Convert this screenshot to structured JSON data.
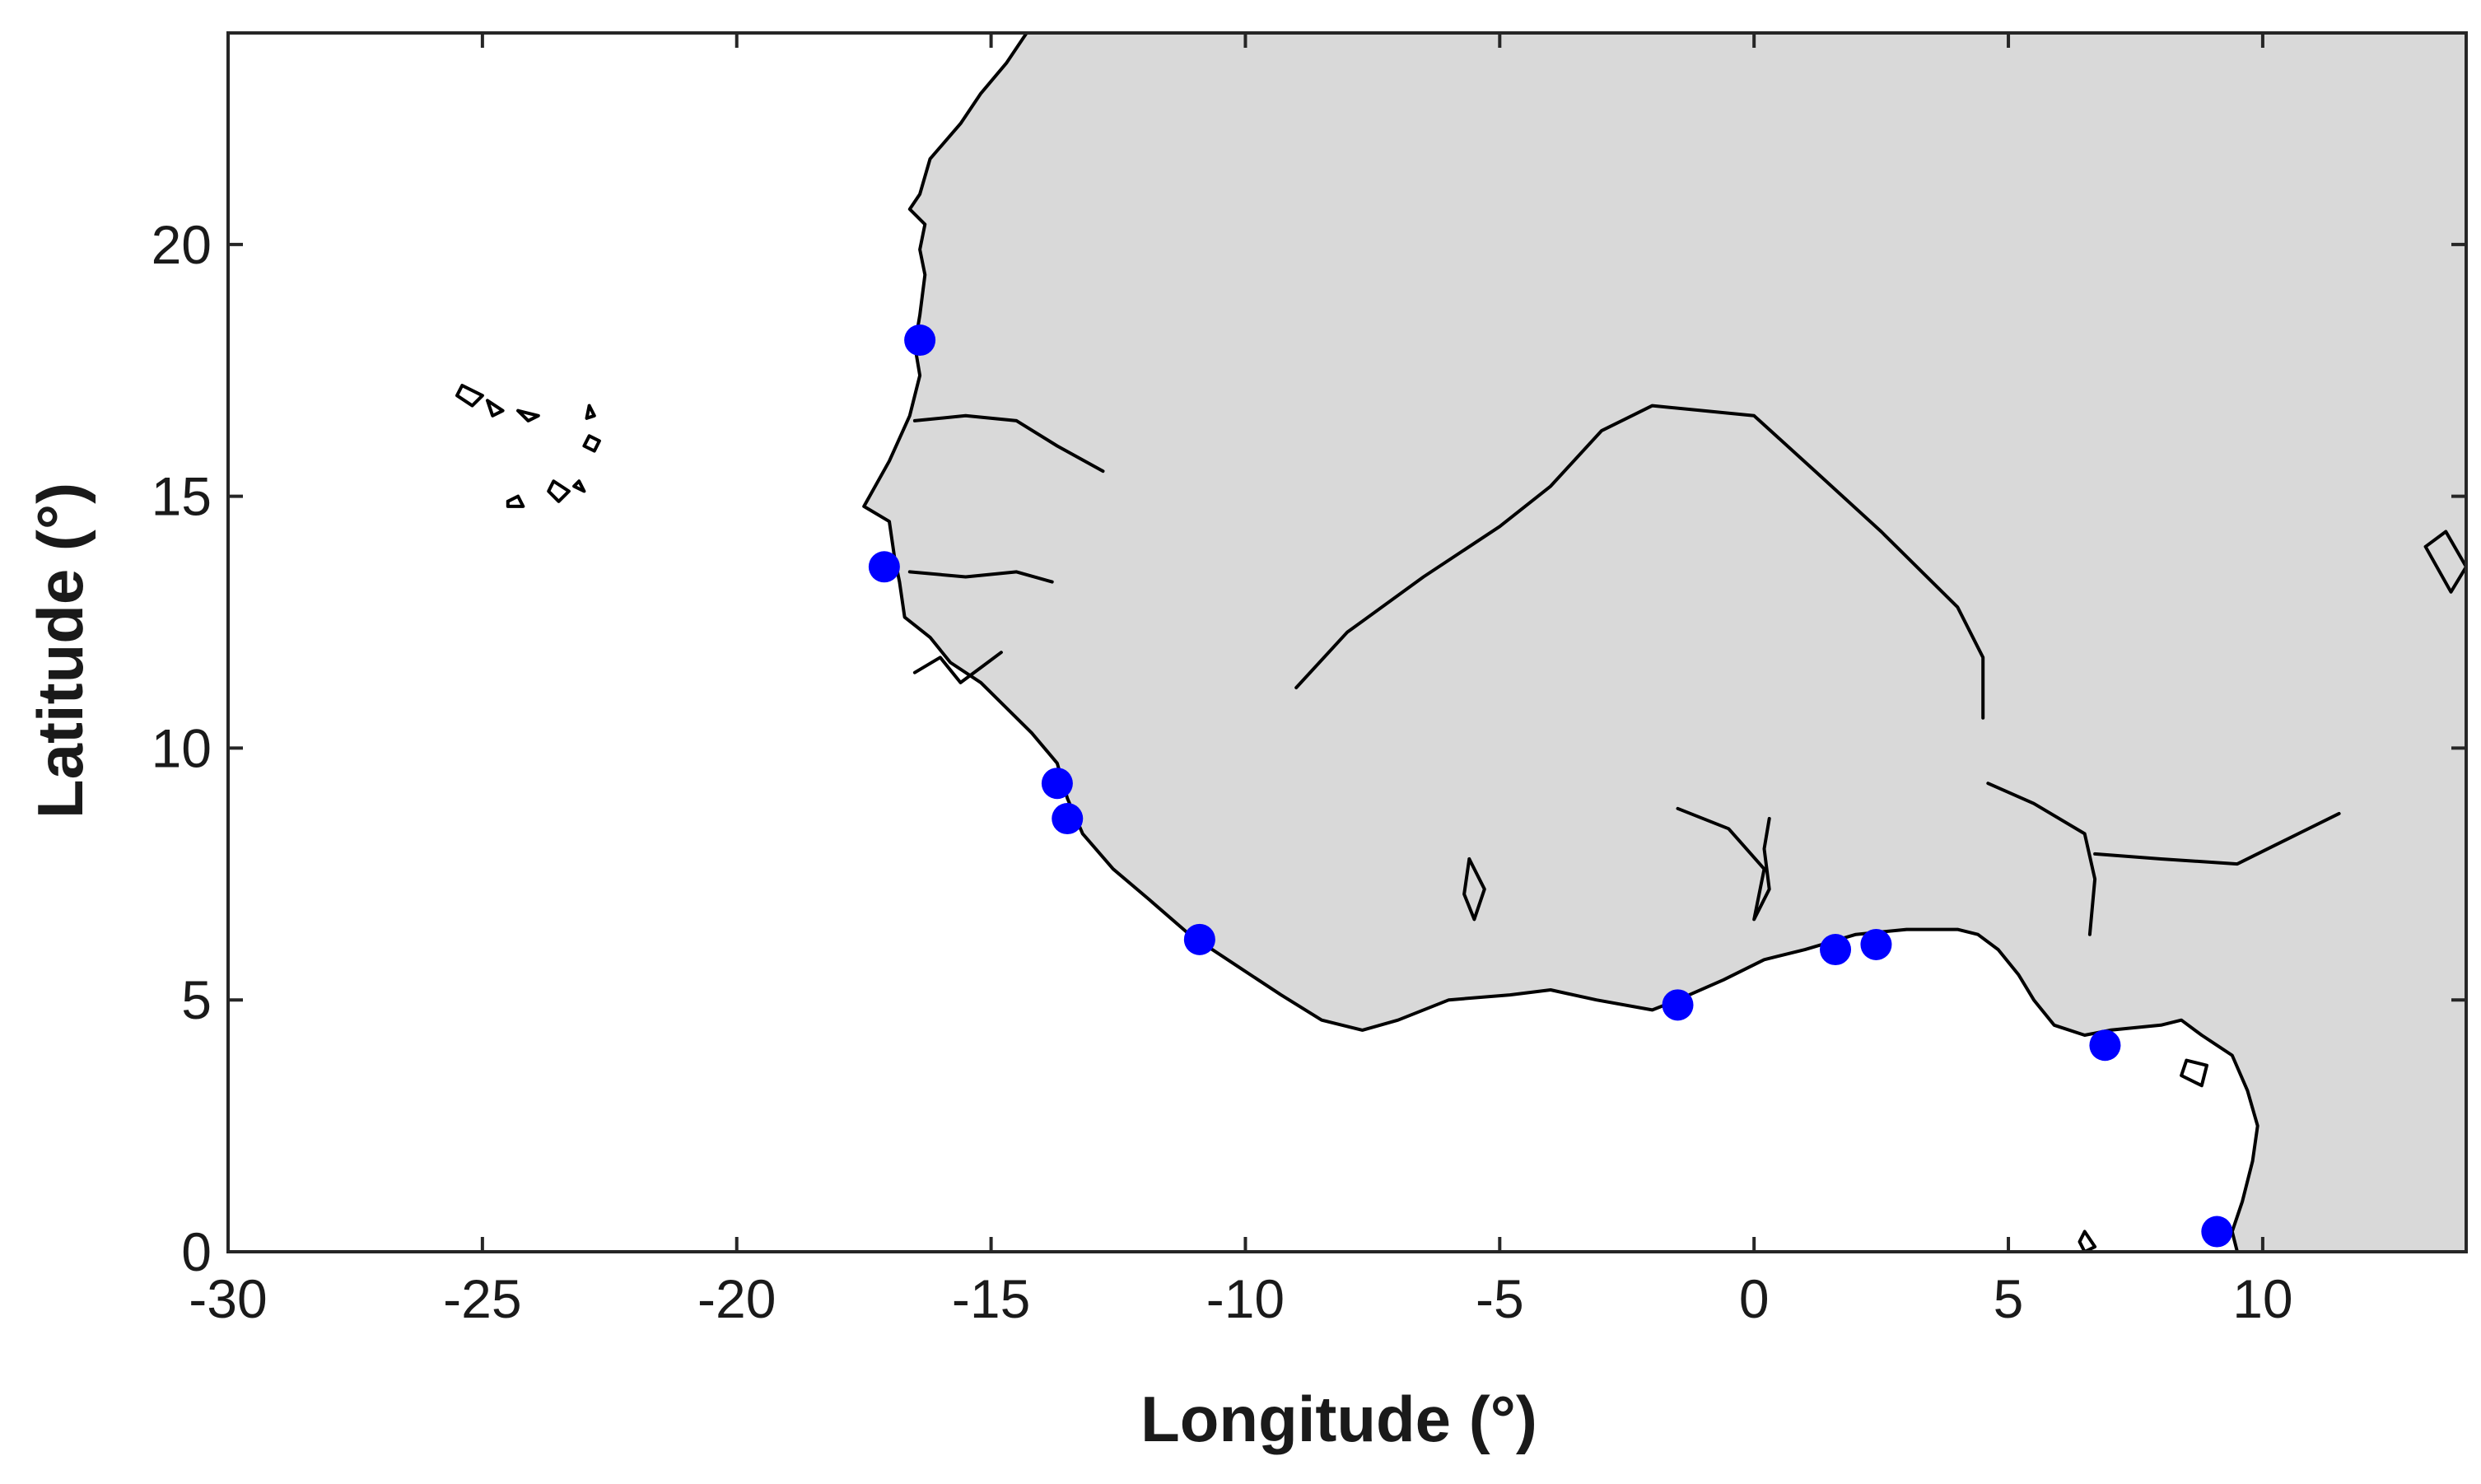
{
  "chart_data": {
    "type": "scatter",
    "title": "",
    "xlabel": "Longitude (°)",
    "ylabel": "Latitude (°)",
    "xlim": [
      -30,
      14
    ],
    "ylim": [
      0,
      24.2
    ],
    "xticks": [
      {
        "value": -30,
        "label": "-30"
      },
      {
        "value": -25,
        "label": "-25"
      },
      {
        "value": -20,
        "label": "-20"
      },
      {
        "value": -15,
        "label": "-15"
      },
      {
        "value": -10,
        "label": "-10"
      },
      {
        "value": -5,
        "label": "-5"
      },
      {
        "value": 0,
        "label": "0"
      },
      {
        "value": 5,
        "label": "5"
      },
      {
        "value": 10,
        "label": "10"
      }
    ],
    "yticks": [
      {
        "value": 0,
        "label": "0"
      },
      {
        "value": 5,
        "label": "5"
      },
      {
        "value": 10,
        "label": "10"
      },
      {
        "value": 15,
        "label": "15"
      },
      {
        "value": 20,
        "label": "20"
      }
    ],
    "grid": false,
    "land_color": "#d9d9d9",
    "marker_color": "#0000ff",
    "points": [
      {
        "lon": -16.4,
        "lat": 18.1
      },
      {
        "lon": -17.1,
        "lat": 13.6
      },
      {
        "lon": -13.7,
        "lat": 9.3
      },
      {
        "lon": -13.5,
        "lat": 8.6
      },
      {
        "lon": -10.9,
        "lat": 6.2
      },
      {
        "lon": -1.5,
        "lat": 4.9
      },
      {
        "lon": 1.6,
        "lat": 6.0
      },
      {
        "lon": 2.4,
        "lat": 6.1
      },
      {
        "lon": 6.9,
        "lat": 4.1
      },
      {
        "lon": 9.1,
        "lat": 0.4
      }
    ],
    "land_polygon": [
      [
        -14.3,
        24.2
      ],
      [
        -14.7,
        23.6
      ],
      [
        -15.2,
        23.0
      ],
      [
        -15.6,
        22.4
      ],
      [
        -16.2,
        21.7
      ],
      [
        -16.4,
        21.0
      ],
      [
        -16.6,
        20.7
      ],
      [
        -16.3,
        20.4
      ],
      [
        -16.4,
        19.9
      ],
      [
        -16.3,
        19.4
      ],
      [
        -16.4,
        18.6
      ],
      [
        -16.5,
        18.0
      ],
      [
        -16.4,
        17.4
      ],
      [
        -16.6,
        16.6
      ],
      [
        -17.0,
        15.7
      ],
      [
        -17.5,
        14.8
      ],
      [
        -17.0,
        14.5
      ],
      [
        -16.9,
        13.8
      ],
      [
        -16.8,
        13.3
      ],
      [
        -16.7,
        12.6
      ],
      [
        -16.2,
        12.2
      ],
      [
        -15.8,
        11.7
      ],
      [
        -15.2,
        11.3
      ],
      [
        -14.7,
        10.8
      ],
      [
        -14.2,
        10.3
      ],
      [
        -13.7,
        9.7
      ],
      [
        -13.5,
        9.0
      ],
      [
        -13.2,
        8.3
      ],
      [
        -12.6,
        7.6
      ],
      [
        -11.9,
        7.0
      ],
      [
        -11.1,
        6.3
      ],
      [
        -10.2,
        5.7
      ],
      [
        -9.3,
        5.1
      ],
      [
        -8.5,
        4.6
      ],
      [
        -7.7,
        4.4
      ],
      [
        -7.0,
        4.6
      ],
      [
        -6.0,
        5.0
      ],
      [
        -4.8,
        5.1
      ],
      [
        -4.0,
        5.2
      ],
      [
        -3.1,
        5.0
      ],
      [
        -2.0,
        4.8
      ],
      [
        -1.5,
        5.0
      ],
      [
        -0.6,
        5.4
      ],
      [
        0.2,
        5.8
      ],
      [
        1.0,
        6.0
      ],
      [
        2.0,
        6.3
      ],
      [
        3.0,
        6.4
      ],
      [
        4.0,
        6.4
      ],
      [
        4.4,
        6.3
      ],
      [
        4.8,
        6.0
      ],
      [
        5.2,
        5.5
      ],
      [
        5.5,
        5.0
      ],
      [
        5.9,
        4.5
      ],
      [
        6.5,
        4.3
      ],
      [
        7.0,
        4.4
      ],
      [
        8.0,
        4.5
      ],
      [
        8.4,
        4.6
      ],
      [
        8.8,
        4.3
      ],
      [
        9.4,
        3.9
      ],
      [
        9.7,
        3.2
      ],
      [
        9.9,
        2.5
      ],
      [
        9.8,
        1.8
      ],
      [
        9.6,
        1.0
      ],
      [
        9.4,
        0.4
      ],
      [
        9.5,
        0.0
      ],
      [
        14.0,
        0.0
      ],
      [
        14.0,
        24.2
      ]
    ],
    "coast_line": [
      [
        -14.3,
        24.2
      ],
      [
        -14.7,
        23.6
      ],
      [
        -15.2,
        23.0
      ],
      [
        -15.6,
        22.4
      ],
      [
        -16.2,
        21.7
      ],
      [
        -16.4,
        21.0
      ],
      [
        -16.6,
        20.7
      ],
      [
        -16.3,
        20.4
      ],
      [
        -16.4,
        19.9
      ],
      [
        -16.3,
        19.4
      ],
      [
        -16.4,
        18.6
      ],
      [
        -16.5,
        18.0
      ],
      [
        -16.4,
        17.4
      ],
      [
        -16.6,
        16.6
      ],
      [
        -17.0,
        15.7
      ],
      [
        -17.5,
        14.8
      ],
      [
        -17.0,
        14.5
      ],
      [
        -16.9,
        13.8
      ],
      [
        -16.8,
        13.3
      ],
      [
        -16.7,
        12.6
      ],
      [
        -16.2,
        12.2
      ],
      [
        -15.8,
        11.7
      ],
      [
        -15.2,
        11.3
      ],
      [
        -14.7,
        10.8
      ],
      [
        -14.2,
        10.3
      ],
      [
        -13.7,
        9.7
      ],
      [
        -13.5,
        9.0
      ],
      [
        -13.2,
        8.3
      ],
      [
        -12.6,
        7.6
      ],
      [
        -11.9,
        7.0
      ],
      [
        -11.1,
        6.3
      ],
      [
        -10.2,
        5.7
      ],
      [
        -9.3,
        5.1
      ],
      [
        -8.5,
        4.6
      ],
      [
        -7.7,
        4.4
      ],
      [
        -7.0,
        4.6
      ],
      [
        -6.0,
        5.0
      ],
      [
        -4.8,
        5.1
      ],
      [
        -4.0,
        5.2
      ],
      [
        -3.1,
        5.0
      ],
      [
        -2.0,
        4.8
      ],
      [
        -1.5,
        5.0
      ],
      [
        -0.6,
        5.4
      ],
      [
        0.2,
        5.8
      ],
      [
        1.0,
        6.0
      ],
      [
        2.0,
        6.3
      ],
      [
        3.0,
        6.4
      ],
      [
        4.0,
        6.4
      ],
      [
        4.4,
        6.3
      ],
      [
        4.8,
        6.0
      ],
      [
        5.2,
        5.5
      ],
      [
        5.5,
        5.0
      ],
      [
        5.9,
        4.5
      ],
      [
        6.5,
        4.3
      ],
      [
        7.0,
        4.4
      ],
      [
        8.0,
        4.5
      ],
      [
        8.4,
        4.6
      ],
      [
        8.8,
        4.3
      ],
      [
        9.4,
        3.9
      ],
      [
        9.7,
        3.2
      ],
      [
        9.9,
        2.5
      ],
      [
        9.8,
        1.8
      ],
      [
        9.6,
        1.0
      ],
      [
        9.4,
        0.4
      ],
      [
        9.5,
        0.0
      ]
    ],
    "lines": [
      {
        "name": "senegal-river",
        "coords": [
          [
            -16.5,
            16.5
          ],
          [
            -15.5,
            16.6
          ],
          [
            -14.5,
            16.5
          ],
          [
            -13.7,
            16.0
          ],
          [
            -12.8,
            15.5
          ]
        ]
      },
      {
        "name": "gambia-river",
        "coords": [
          [
            -16.6,
            13.5
          ],
          [
            -15.5,
            13.4
          ],
          [
            -14.5,
            13.5
          ],
          [
            -13.8,
            13.3
          ]
        ]
      },
      {
        "name": "niger-river-upper",
        "coords": [
          [
            -9.0,
            11.2
          ],
          [
            -8.0,
            12.3
          ],
          [
            -6.5,
            13.4
          ],
          [
            -5.0,
            14.4
          ],
          [
            -4.0,
            15.2
          ],
          [
            -3.0,
            16.3
          ],
          [
            -2.0,
            16.8
          ],
          [
            0.0,
            16.6
          ],
          [
            1.2,
            15.5
          ],
          [
            2.5,
            14.3
          ],
          [
            4.0,
            12.8
          ],
          [
            4.5,
            11.8
          ],
          [
            4.5,
            10.6
          ]
        ]
      },
      {
        "name": "niger-river-lower",
        "coords": [
          [
            4.6,
            9.3
          ],
          [
            5.5,
            8.9
          ],
          [
            6.5,
            8.3
          ],
          [
            6.7,
            7.4
          ],
          [
            6.6,
            6.3
          ]
        ]
      },
      {
        "name": "benue-river",
        "coords": [
          [
            6.7,
            7.9
          ],
          [
            8.0,
            7.8
          ],
          [
            9.5,
            7.7
          ],
          [
            10.3,
            8.1
          ],
          [
            11.5,
            8.7
          ]
        ]
      },
      {
        "name": "volta-lake",
        "coords": [
          [
            -1.5,
            8.8
          ],
          [
            -0.5,
            8.4
          ],
          [
            0.2,
            7.6
          ],
          [
            0.0,
            6.6
          ],
          [
            0.3,
            7.2
          ],
          [
            0.2,
            8.0
          ],
          [
            0.3,
            8.6
          ]
        ]
      },
      {
        "name": "lake-kossou",
        "coords": [
          [
            -5.6,
            7.8
          ],
          [
            -5.3,
            7.2
          ],
          [
            -5.5,
            6.6
          ],
          [
            -5.7,
            7.1
          ],
          [
            -5.6,
            7.8
          ]
        ]
      },
      {
        "name": "lake-chad",
        "coords": [
          [
            13.2,
            14.0
          ],
          [
            13.6,
            14.3
          ],
          [
            14.0,
            13.6
          ],
          [
            13.7,
            13.1
          ],
          [
            13.2,
            14.0
          ]
        ]
      },
      {
        "name": "bioko",
        "coords": [
          [
            8.5,
            3.8
          ],
          [
            8.9,
            3.7
          ],
          [
            8.8,
            3.3
          ],
          [
            8.4,
            3.5
          ],
          [
            8.5,
            3.8
          ]
        ]
      },
      {
        "name": "sao-tome",
        "coords": [
          [
            6.5,
            0.4
          ],
          [
            6.7,
            0.1
          ],
          [
            6.5,
            0.0
          ],
          [
            6.4,
            0.2
          ],
          [
            6.5,
            0.4
          ]
        ]
      },
      {
        "name": "cape-verde-santo-antao",
        "coords": [
          [
            -25.4,
            17.2
          ],
          [
            -25.0,
            17.0
          ],
          [
            -25.2,
            16.8
          ],
          [
            -25.5,
            17.0
          ],
          [
            -25.4,
            17.2
          ]
        ]
      },
      {
        "name": "cape-verde-sao-vicente",
        "coords": [
          [
            -24.9,
            16.9
          ],
          [
            -24.6,
            16.7
          ],
          [
            -24.8,
            16.6
          ],
          [
            -24.9,
            16.9
          ]
        ]
      },
      {
        "name": "cape-verde-sao-nicolau",
        "coords": [
          [
            -24.3,
            16.7
          ],
          [
            -23.9,
            16.6
          ],
          [
            -24.1,
            16.5
          ],
          [
            -24.3,
            16.7
          ]
        ]
      },
      {
        "name": "cape-verde-sal",
        "coords": [
          [
            -22.9,
            16.8
          ],
          [
            -22.8,
            16.6
          ],
          [
            -22.95,
            16.55
          ],
          [
            -22.9,
            16.8
          ]
        ]
      },
      {
        "name": "cape-verde-boa-vista",
        "coords": [
          [
            -22.9,
            16.2
          ],
          [
            -22.7,
            16.1
          ],
          [
            -22.8,
            15.9
          ],
          [
            -23.0,
            16.0
          ],
          [
            -22.9,
            16.2
          ]
        ]
      },
      {
        "name": "cape-verde-santiago",
        "coords": [
          [
            -23.6,
            15.3
          ],
          [
            -23.3,
            15.1
          ],
          [
            -23.5,
            14.9
          ],
          [
            -23.7,
            15.1
          ],
          [
            -23.6,
            15.3
          ]
        ]
      },
      {
        "name": "cape-verde-fogo",
        "coords": [
          [
            -24.5,
            14.9
          ],
          [
            -24.3,
            15.0
          ],
          [
            -24.2,
            14.8
          ],
          [
            -24.5,
            14.8
          ],
          [
            -24.5,
            14.9
          ]
        ]
      },
      {
        "name": "cape-verde-maio",
        "coords": [
          [
            -23.1,
            15.3
          ],
          [
            -23.0,
            15.1
          ],
          [
            -23.2,
            15.2
          ],
          [
            -23.1,
            15.3
          ]
        ]
      },
      {
        "name": "bijagos-coast",
        "coords": [
          [
            -16.5,
            11.5
          ],
          [
            -16.0,
            11.8
          ],
          [
            -15.6,
            11.3
          ],
          [
            -15.2,
            11.6
          ],
          [
            -14.8,
            11.9
          ]
        ]
      }
    ]
  }
}
